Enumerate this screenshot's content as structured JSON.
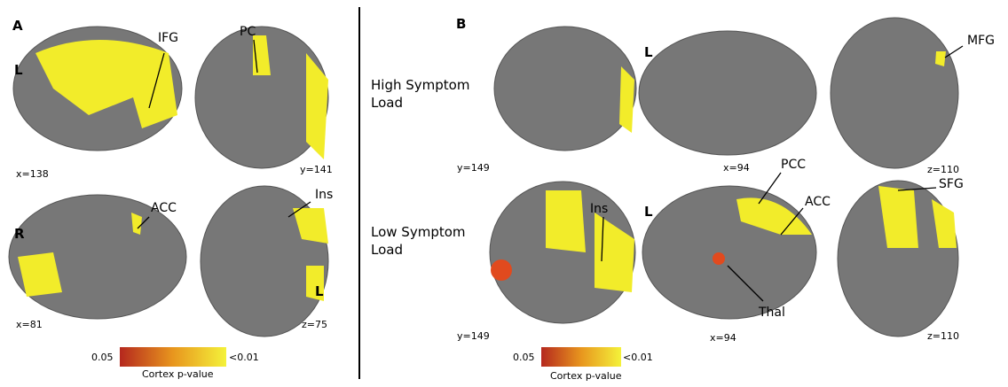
{
  "panel_a": {
    "label": "A",
    "views": [
      {
        "coord": "x=138",
        "side": "L",
        "annotations": [
          "IFG"
        ]
      },
      {
        "coord": "y=141",
        "annotations": [
          "PC"
        ]
      },
      {
        "coord": "x=81",
        "side": "R",
        "annotations": [
          "ACC"
        ]
      },
      {
        "coord": "z=75",
        "side": "L",
        "annotations": [
          "Ins"
        ]
      }
    ],
    "colorbar": {
      "min": "0.05",
      "max": "<0.01",
      "label": "Cortex p-value"
    }
  },
  "panel_b": {
    "label": "B",
    "rows": [
      {
        "label": "High Symptom Load",
        "coronal": "y=149",
        "sagittal": "x=94",
        "sagittal_side": "L",
        "axial": "z=110",
        "annotations": [
          "MFG"
        ]
      },
      {
        "label": "Low Symptom Load",
        "coronal": "y=149",
        "sagittal": "x=94",
        "sagittal_side": "L",
        "axial": "z=110",
        "annotations": [
          "Ins",
          "PCC",
          "ACC",
          "Thal",
          "SFG"
        ]
      }
    ],
    "colorbar": {
      "min": "0.05",
      "max": "<0.01",
      "label": "Cortex p-value"
    }
  }
}
